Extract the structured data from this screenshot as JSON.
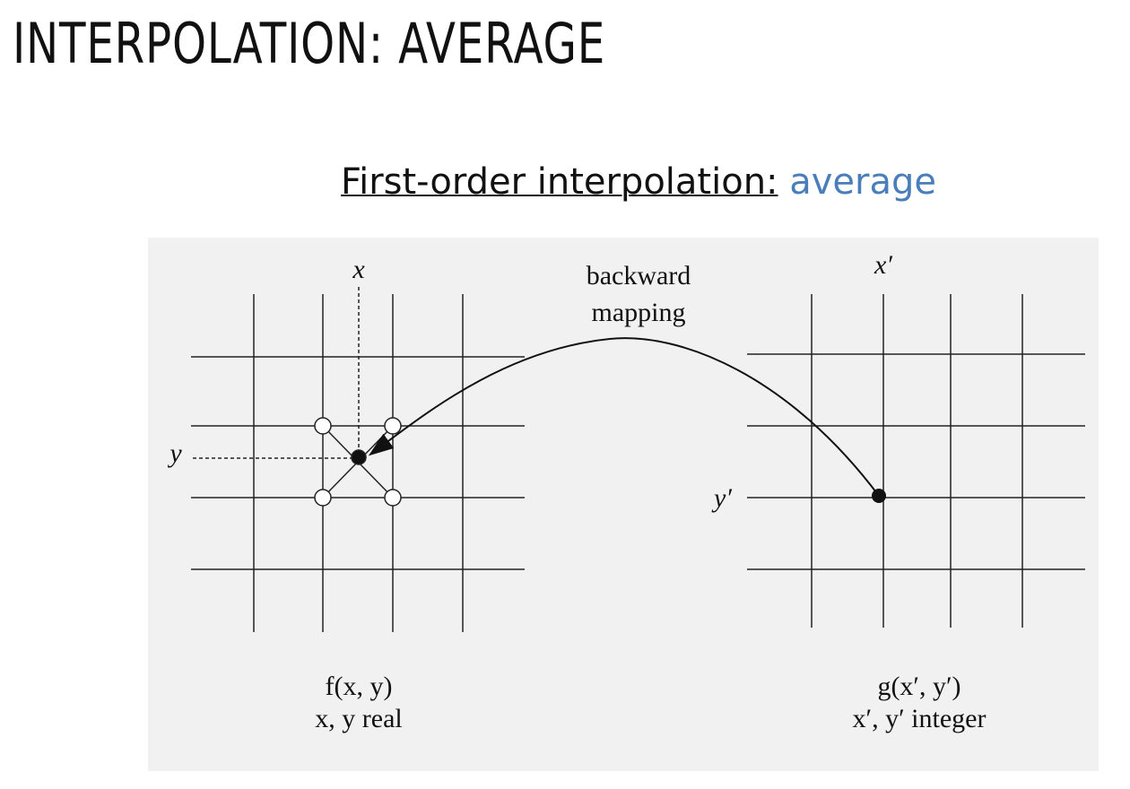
{
  "header": {
    "title": "INTERPOLATION: AVERAGE"
  },
  "subtitle": {
    "lead": "First-order interpolation:",
    "emphasis": "average"
  },
  "diagram": {
    "mapping_label": [
      "backward",
      "mapping"
    ],
    "source": {
      "x_label": "x",
      "y_label": "y",
      "caption": [
        "f(x, y)",
        "x, y real"
      ]
    },
    "target": {
      "x_label": "x′",
      "y_label": "y′",
      "caption": [
        "g(x′, y′)",
        "x′, y′ integer"
      ]
    }
  }
}
